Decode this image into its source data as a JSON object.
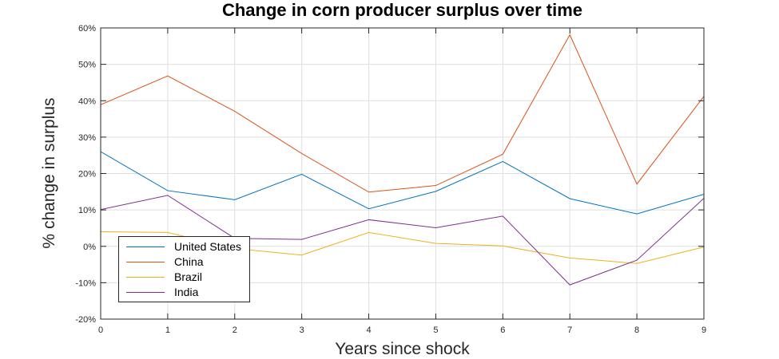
{
  "chart_data": {
    "type": "line",
    "title": "Change in corn producer surplus over time",
    "xlabel": "Years since shock",
    "ylabel": "% change in surplus",
    "x": [
      0,
      1,
      2,
      3,
      4,
      5,
      6,
      7,
      8,
      9
    ],
    "xlim": [
      0,
      9
    ],
    "ylim": [
      -20,
      60
    ],
    "xticks": [
      "0",
      "1",
      "2",
      "3",
      "4",
      "5",
      "6",
      "7",
      "8",
      "9"
    ],
    "yticks": [
      -20,
      -10,
      0,
      10,
      20,
      30,
      40,
      50,
      60
    ],
    "ytick_labels": [
      "-20%",
      "-10%",
      "0%",
      "10%",
      "20%",
      "30%",
      "40%",
      "50%",
      "60%"
    ],
    "grid": true,
    "legend_position": "bottom-left",
    "series": [
      {
        "name": "United States",
        "color": "#0072BD",
        "values": [
          26,
          15.3,
          12.8,
          19.8,
          10.3,
          15.1,
          23.3,
          13.1,
          8.9,
          14.3
        ]
      },
      {
        "name": "China",
        "color": "#D95319",
        "values": [
          38.9,
          46.8,
          37.1,
          25.5,
          14.9,
          16.7,
          25.3,
          58.1,
          17.1,
          41.2
        ]
      },
      {
        "name": "Brazil",
        "color": "#EDB120",
        "values": [
          4,
          3.8,
          -0.6,
          -2.4,
          3.8,
          0.8,
          0.1,
          -3.2,
          -4.7,
          -0.2
        ]
      },
      {
        "name": "India",
        "color": "#7E2F8E",
        "values": [
          10.1,
          14,
          2.2,
          1.9,
          7.3,
          5.1,
          8.3,
          -10.6,
          -3.8,
          13.2
        ]
      }
    ]
  }
}
